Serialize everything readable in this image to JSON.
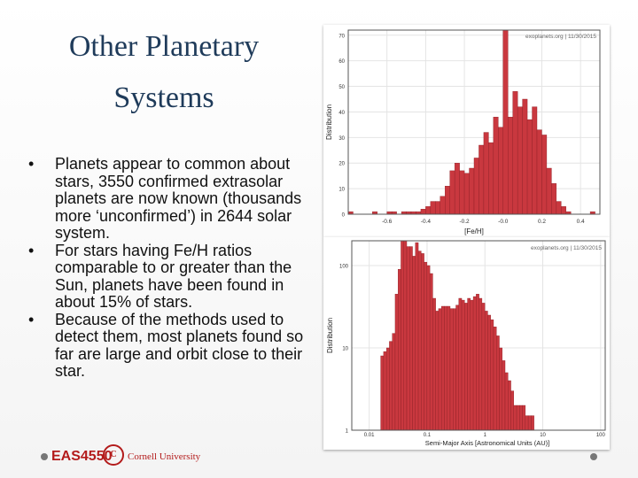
{
  "slide": {
    "title": "Other Planetary Systems",
    "title_line1": "Other Planetary",
    "title_line2": "Systems",
    "bullets": [
      "Planets appear to common about stars, 3550 confirmed extrasolar planets are now known (thousands more ‘unconfirmed’) in 2644 solar system.",
      "For stars having Fe/H ratios comparable to or greater than the Sun, planets have been found in about 15% of stars.",
      "Because of the methods used to detect them, most planets found so far are large and orbit close to their star."
    ],
    "bullet_symbol": "•"
  },
  "footer": {
    "course_logo": "EAS4550",
    "university": "Cornell University",
    "seal_text": "C"
  },
  "colors": {
    "bar": "#c9383f",
    "bar_edge": "#8e1f25",
    "title": "#1f3b5a",
    "accent": "#b31b1b"
  },
  "chart_data": [
    {
      "type": "bar",
      "watermark": "exoplanets.org | 11/30/2015",
      "xlabel": "[Fe/H]",
      "ylabel": "Distribution",
      "xlim": [
        -0.8,
        0.5
      ],
      "ylim": [
        0,
        72
      ],
      "x_ticks": [
        "-0.6",
        "-0.4",
        "-0.2",
        "-0.0",
        "0.2",
        "0.4"
      ],
      "x_tick_values": [
        -0.6,
        -0.4,
        -0.2,
        0.0,
        0.2,
        0.4
      ],
      "y_ticks": [
        0,
        10,
        20,
        30,
        40,
        50,
        60,
        70
      ],
      "y_tick_labels": [
        "0",
        "10",
        "20",
        "30",
        "40",
        "50",
        "60",
        "70"
      ],
      "bin_width": 0.025,
      "bin_start": -0.8,
      "values": [
        1,
        0,
        0,
        0,
        0,
        1,
        0,
        0,
        1,
        1,
        0,
        1,
        1,
        1,
        1,
        2,
        3,
        5,
        5,
        7,
        11,
        17,
        20,
        17,
        16,
        18,
        22,
        27,
        32,
        28,
        38,
        34,
        72,
        38,
        48,
        42,
        45,
        37,
        42,
        33,
        31,
        18,
        12,
        5,
        3,
        1,
        0,
        0,
        0,
        0,
        1,
        0
      ]
    },
    {
      "type": "bar",
      "log_y": true,
      "log_x": true,
      "watermark": "exoplanets.org | 11/30/2015",
      "xlabel": "Semi-Major Axis [Astronomical Units (AU)]",
      "ylabel": "Distribution",
      "xlim": [
        0.005,
        120
      ],
      "ylim": [
        1,
        200
      ],
      "x_ticks": [
        "0.01",
        "0.1",
        "1",
        "10",
        "100"
      ],
      "x_tick_values": [
        0.01,
        0.1,
        1,
        10,
        100
      ],
      "y_ticks": [
        "1",
        "10",
        "100"
      ],
      "y_tick_values": [
        1,
        10,
        100
      ],
      "bin_start": 0.0158,
      "bin_width_dex": 0.05,
      "values": [
        8,
        9,
        10,
        12,
        15,
        45,
        90,
        200,
        200,
        170,
        170,
        130,
        190,
        150,
        140,
        110,
        100,
        80,
        40,
        28,
        30,
        32,
        32,
        32,
        30,
        30,
        33,
        40,
        38,
        35,
        40,
        38,
        42,
        45,
        40,
        35,
        28,
        25,
        22,
        18,
        14,
        10,
        7,
        5,
        4,
        3,
        2,
        2,
        2,
        2,
        1.5,
        1.5,
        1.5
      ]
    }
  ]
}
